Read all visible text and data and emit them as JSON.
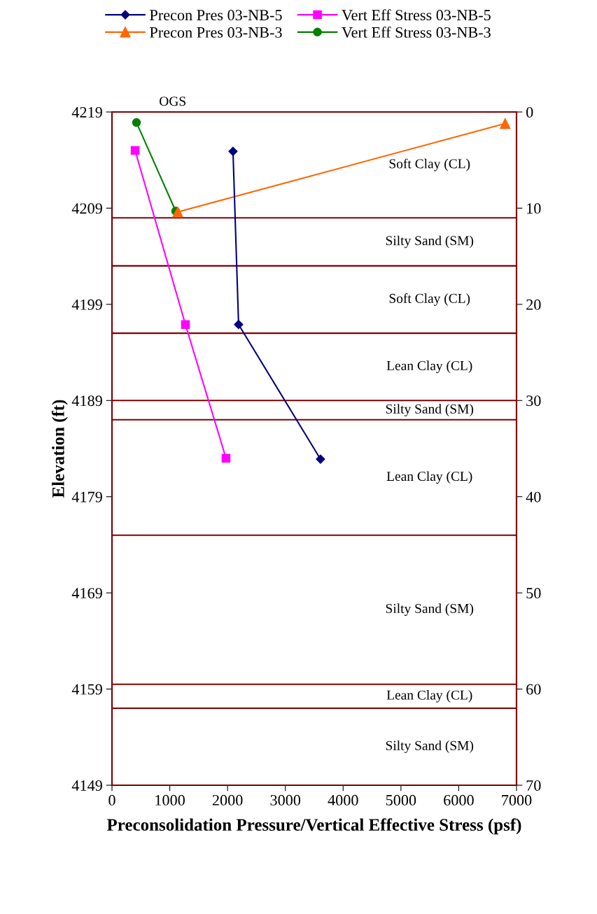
{
  "chart_data": {
    "type": "line",
    "xlabel": "Preconsolidation Pressure/Vertical Effective Stress (psf)",
    "ylabel": "Elevation (ft)",
    "series": [
      {
        "name": "Precon Pres 03-NB-5",
        "color": "#000080",
        "marker": "diamond",
        "x": [
          2094,
          2191,
          3608
        ],
        "values": [
          4214.9,
          4196.9,
          4182.9
        ]
      },
      {
        "name": "Vert Eff Stress 03-NB-5",
        "color": "#ff00ff",
        "marker": "square",
        "x": [
          400,
          1271,
          1973
        ],
        "values": [
          4215.0,
          4196.9,
          4183.0
        ]
      },
      {
        "name": "Precon Pres 03-NB-3",
        "color": "#ff6600",
        "marker": "triangle",
        "x": [
          1138,
          6804
        ],
        "values": [
          4208.6,
          4217.8
        ]
      },
      {
        "name": "Vert Eff Stress 03-NB-3",
        "color": "#008000",
        "marker": "circle",
        "x": [
          424,
          1102
        ],
        "values": [
          4217.9,
          4208.7
        ]
      }
    ],
    "xlim": [
      0,
      7000
    ],
    "xticks": [
      0,
      1000,
      2000,
      3000,
      4000,
      5000,
      6000,
      7000
    ],
    "ylim": [
      4149,
      4219
    ],
    "yticks": [
      4149,
      4159,
      4169,
      4179,
      4189,
      4199,
      4209,
      4219
    ],
    "y2lim": [
      70,
      0
    ],
    "y2ticks": [
      0,
      10,
      20,
      30,
      40,
      50,
      60,
      70
    ],
    "ref_lines": [
      {
        "axis": "y2",
        "value": 11,
        "color": "#800000"
      },
      {
        "axis": "y2",
        "value": 16,
        "color": "#800000"
      },
      {
        "axis": "y2",
        "value": 23,
        "color": "#800000"
      },
      {
        "axis": "y2",
        "value": 30,
        "color": "#800000"
      },
      {
        "axis": "y2",
        "value": 32,
        "color": "#800000"
      },
      {
        "axis": "y2",
        "value": 44,
        "color": "#800000"
      },
      {
        "axis": "y2",
        "value": 59.5,
        "color": "#800000"
      },
      {
        "axis": "y2",
        "value": 62,
        "color": "#800000"
      }
    ],
    "annotations": [
      "OGS",
      "Soft Clay (CL)",
      "Silty Sand (SM)",
      "Soft Clay (CL)",
      "Lean Clay (CL)",
      "Silty Sand (SM)",
      "Lean Clay (CL)",
      "Silty Sand (SM)",
      "Lean Clay (CL)",
      "Silty Sand (SM)"
    ],
    "legend": "top",
    "grid": false,
    "line_style": "solid"
  }
}
